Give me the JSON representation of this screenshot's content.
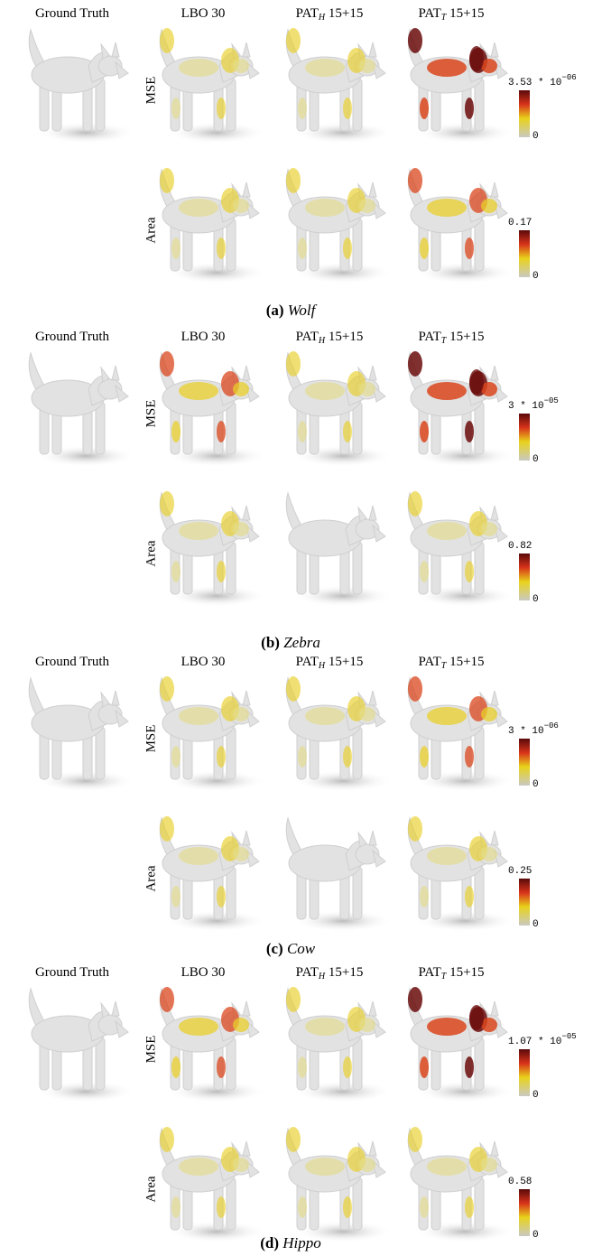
{
  "panels": [
    {
      "label": "(a)",
      "name": "Wolf",
      "columns": [
        {
          "text": "Ground Truth"
        },
        {
          "text": "LBO 30"
        },
        {
          "text": "PAT",
          "sub": "H",
          "suffix": " 15+15"
        },
        {
          "text": "PAT",
          "sub": "T",
          "suffix": " 15+15"
        }
      ],
      "rows": [
        "MSE",
        "Area"
      ],
      "colorbars": [
        {
          "max": "3.53 * 10",
          "exponent": "−06",
          "min": "0"
        },
        {
          "max": "0.17",
          "min": "0"
        }
      ]
    },
    {
      "label": "(b)",
      "name": "Zebra",
      "columns": [
        {
          "text": "Ground Truth"
        },
        {
          "text": "LBO 30"
        },
        {
          "text": "PAT",
          "sub": "H",
          "suffix": " 15+15"
        },
        {
          "text": "PAT",
          "sub": "T",
          "suffix": " 15+15"
        }
      ],
      "rows": [
        "MSE",
        "Area"
      ],
      "colorbars": [
        {
          "max": "3 * 10",
          "exponent": "−05",
          "min": "0"
        },
        {
          "max": "0.82",
          "min": "0"
        }
      ]
    },
    {
      "label": "(c)",
      "name": "Cow",
      "columns": [
        {
          "text": "Ground Truth"
        },
        {
          "text": "LBO 30"
        },
        {
          "text": "PAT",
          "sub": "H",
          "suffix": " 15+15"
        },
        {
          "text": "PAT",
          "sub": "T",
          "suffix": " 15+15"
        }
      ],
      "rows": [
        "MSE",
        "Area"
      ],
      "colorbars": [
        {
          "max": "3 * 10",
          "exponent": "−06",
          "min": "0"
        },
        {
          "max": "0.25",
          "min": "0"
        }
      ]
    },
    {
      "label": "(d)",
      "name": "Hippo",
      "columns": [
        {
          "text": "Ground Truth"
        },
        {
          "text": "LBO 30"
        },
        {
          "text": "PAT",
          "sub": "H",
          "suffix": " 15+15"
        },
        {
          "text": "PAT",
          "sub": "T",
          "suffix": " 15+15"
        }
      ],
      "rows": [
        "MSE",
        "Area"
      ],
      "colorbars": [
        {
          "max": "1.07 * 10",
          "exponent": "−05",
          "min": "0"
        },
        {
          "max": "0.58",
          "min": "0"
        }
      ]
    }
  ]
}
